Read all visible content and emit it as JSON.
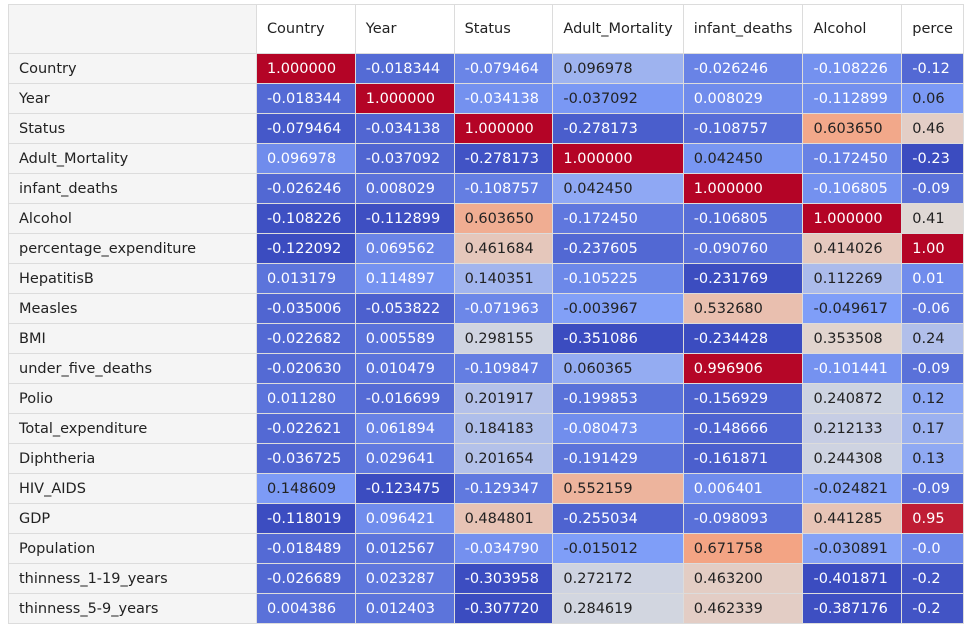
{
  "table": {
    "columns": [
      "Country",
      "Year",
      "Status",
      "Adult_Mortality",
      "infant_deaths",
      "Alcohol",
      "perce"
    ],
    "rows": [
      {
        "label": "Country",
        "values": [
          "1.000000",
          "-0.018344",
          "-0.079464",
          "0.096978",
          "-0.026246",
          "-0.108226",
          "-0.12"
        ]
      },
      {
        "label": "Year",
        "values": [
          "-0.018344",
          "1.000000",
          "-0.034138",
          "-0.037092",
          "0.008029",
          "-0.112899",
          "0.06"
        ]
      },
      {
        "label": "Status",
        "values": [
          "-0.079464",
          "-0.034138",
          "1.000000",
          "-0.278173",
          "-0.108757",
          "0.603650",
          "0.46"
        ]
      },
      {
        "label": "Adult_Mortality",
        "values": [
          "0.096978",
          "-0.037092",
          "-0.278173",
          "1.000000",
          "0.042450",
          "-0.172450",
          "-0.23"
        ]
      },
      {
        "label": "infant_deaths",
        "values": [
          "-0.026246",
          "0.008029",
          "-0.108757",
          "0.042450",
          "1.000000",
          "-0.106805",
          "-0.09"
        ]
      },
      {
        "label": "Alcohol",
        "values": [
          "-0.108226",
          "-0.112899",
          "0.603650",
          "-0.172450",
          "-0.106805",
          "1.000000",
          "0.41"
        ]
      },
      {
        "label": "percentage_expenditure",
        "values": [
          "-0.122092",
          "0.069562",
          "0.461684",
          "-0.237605",
          "-0.090760",
          "0.414026",
          "1.00"
        ]
      },
      {
        "label": "HepatitisB",
        "values": [
          "0.013179",
          "0.114897",
          "0.140351",
          "-0.105225",
          "-0.231769",
          "0.112269",
          "0.01"
        ]
      },
      {
        "label": "Measles",
        "values": [
          "-0.035006",
          "-0.053822",
          "-0.071963",
          "-0.003967",
          "0.532680",
          "-0.049617",
          "-0.06"
        ]
      },
      {
        "label": "BMI",
        "values": [
          "-0.022682",
          "0.005589",
          "0.298155",
          "-0.351086",
          "-0.234428",
          "0.353508",
          "0.24"
        ]
      },
      {
        "label": "under_five_deaths",
        "values": [
          "-0.020630",
          "0.010479",
          "-0.109847",
          "0.060365",
          "0.996906",
          "-0.101441",
          "-0.09"
        ]
      },
      {
        "label": "Polio",
        "values": [
          "0.011280",
          "-0.016699",
          "0.201917",
          "-0.199853",
          "-0.156929",
          "0.240872",
          "0.12"
        ]
      },
      {
        "label": "Total_expenditure",
        "values": [
          "-0.022621",
          "0.061894",
          "0.184183",
          "-0.080473",
          "-0.148666",
          "0.212133",
          "0.17"
        ]
      },
      {
        "label": "Diphtheria",
        "values": [
          "-0.036725",
          "0.029641",
          "0.201654",
          "-0.191429",
          "-0.161871",
          "0.244308",
          "0.13"
        ]
      },
      {
        "label": "HIV_AIDS",
        "values": [
          "0.148609",
          "-0.123475",
          "-0.129347",
          "0.552159",
          "0.006401",
          "-0.024821",
          "-0.09"
        ]
      },
      {
        "label": "GDP",
        "values": [
          "-0.118019",
          "0.096421",
          "0.484801",
          "-0.255034",
          "-0.098093",
          "0.441285",
          "0.95"
        ]
      },
      {
        "label": "Population",
        "values": [
          "-0.018489",
          "0.012567",
          "-0.034790",
          "-0.015012",
          "0.671758",
          "-0.030891",
          "-0.0"
        ]
      },
      {
        "label": "thinness_1-19_years",
        "values": [
          "-0.026689",
          "0.023287",
          "-0.303958",
          "0.272172",
          "0.463200",
          "-0.401871",
          "-0.2"
        ]
      },
      {
        "label": "thinness_5-9_years",
        "values": [
          "0.004386",
          "0.012403",
          "-0.307720",
          "0.284619",
          "0.462339",
          "-0.387176",
          "-0.2"
        ]
      }
    ]
  },
  "colors": {
    "scale": "coolwarm",
    "min_color": "#3b4cc0",
    "mid_color": "#dddddd",
    "max_color": "#b40426",
    "header_bg": "#f5f5f5",
    "grid": "#dcdcdc"
  }
}
